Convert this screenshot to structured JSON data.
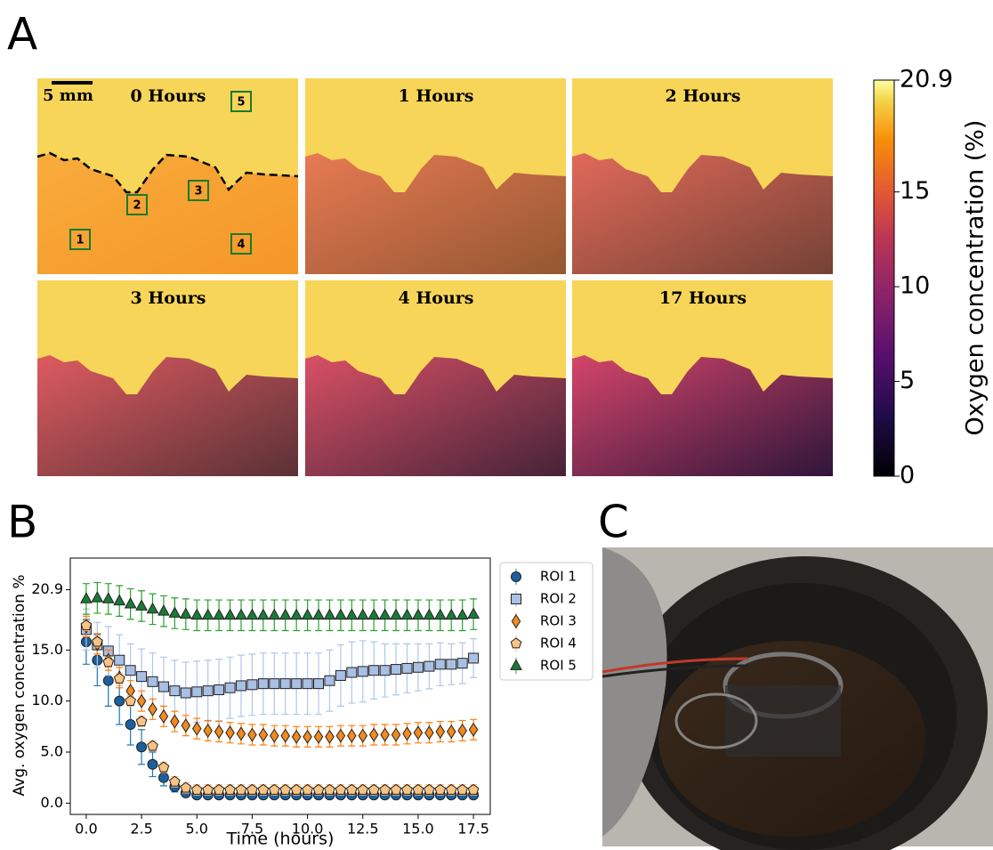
{
  "panel_labels": [
    "A",
    "B",
    "C"
  ],
  "heatmaps": {
    "titles": [
      "0 Hours",
      "1 Hours",
      "2 Hours",
      "3 Hours",
      "4 Hours",
      "17 Hours"
    ],
    "scale_bar": "5 mm",
    "roi_labels": [
      "1",
      "2",
      "3",
      "4",
      "5"
    ]
  },
  "colorbar": {
    "label": "Oxygen concentration (%)",
    "lim": [
      0,
      20.9
    ],
    "ticks": [
      0,
      5,
      10,
      15,
      20.9
    ]
  },
  "chart_data": {
    "type": "errorbar",
    "x_label": "Time (hours)",
    "y_label": "Avg. oxygen concentration %",
    "x": [
      0,
      0.5,
      1,
      1.5,
      2,
      2.5,
      3,
      3.5,
      4,
      4.5,
      5,
      5.5,
      6,
      6.5,
      7,
      7.5,
      8,
      8.5,
      9,
      9.5,
      10,
      10.5,
      11,
      11.5,
      12,
      12.5,
      13,
      13.5,
      14,
      14.5,
      15,
      15.5,
      16,
      16.5,
      17,
      17.5
    ],
    "xlim": [
      -0.72,
      18.26
    ],
    "ylim": [
      -1.1,
      24.0
    ],
    "xticks": [
      {
        "value": 0,
        "label": "0.0"
      },
      {
        "value": 2.5,
        "label": "2.5"
      },
      {
        "value": 5,
        "label": "5.0"
      },
      {
        "value": 7.5,
        "label": "7.5"
      },
      {
        "value": 10,
        "label": "10.0"
      },
      {
        "value": 12.5,
        "label": "12.5"
      },
      {
        "value": 15,
        "label": "15.0"
      },
      {
        "value": 17.5,
        "label": "17.5"
      }
    ],
    "yticks": [
      {
        "value": 0,
        "label": "0.0"
      },
      {
        "value": 5,
        "label": "5.0"
      },
      {
        "value": 10,
        "label": "10.0"
      },
      {
        "value": 15,
        "label": "15.0"
      },
      20.9
    ],
    "legend": "outside-right",
    "series": [
      {
        "name": "ROI 1",
        "marker": "circle",
        "color": "#1c5f9e",
        "error_color": "#1f77b4",
        "values": [
          15.8,
          14.0,
          12.0,
          10.0,
          7.7,
          5.5,
          3.8,
          2.5,
          1.6,
          1.0,
          0.8,
          0.8,
          0.8,
          0.8,
          0.8,
          0.8,
          0.8,
          0.8,
          0.8,
          0.8,
          0.8,
          0.8,
          0.8,
          0.8,
          0.8,
          0.8,
          0.8,
          0.8,
          0.8,
          0.8,
          0.8,
          0.8,
          0.8,
          0.8,
          0.8,
          0.8
        ],
        "errors": [
          2.2,
          2.5,
          2.5,
          2.3,
          2.0,
          1.7,
          1.2,
          0.8,
          0.5,
          0.3,
          0.3,
          0.3,
          0.3,
          0.3,
          0.3,
          0.3,
          0.3,
          0.3,
          0.3,
          0.3,
          0.3,
          0.3,
          0.3,
          0.3,
          0.3,
          0.3,
          0.3,
          0.3,
          0.3,
          0.3,
          0.3,
          0.3,
          0.3,
          0.3,
          0.3,
          0.3
        ]
      },
      {
        "name": "ROI 2",
        "marker": "square",
        "color": "#a9bfe4",
        "error_color": "#aec7e8",
        "values": [
          17.0,
          15.5,
          14.9,
          14.0,
          13.0,
          12.4,
          11.9,
          11.4,
          11.0,
          10.8,
          10.9,
          11.0,
          11.1,
          11.3,
          11.5,
          11.6,
          11.7,
          11.7,
          11.7,
          11.7,
          11.7,
          11.7,
          12.0,
          12.5,
          12.8,
          12.9,
          13.0,
          13.0,
          13.1,
          13.2,
          13.3,
          13.4,
          13.6,
          13.6,
          13.7,
          14.2
        ],
        "errors": [
          2.0,
          2.2,
          2.4,
          2.5,
          2.6,
          2.7,
          2.8,
          2.9,
          3.0,
          3.0,
          3.0,
          3.0,
          3.0,
          3.0,
          3.0,
          3.0,
          3.0,
          3.0,
          3.0,
          3.0,
          3.0,
          3.0,
          3.0,
          3.0,
          3.0,
          3.0,
          2.8,
          2.6,
          2.5,
          2.4,
          2.3,
          2.2,
          2.1,
          2.0,
          2.0,
          1.9
        ]
      },
      {
        "name": "ROI 3",
        "marker": "diamond",
        "color": "#f28a1e",
        "error_color": "#ff7f0e",
        "values": [
          17.3,
          15.6,
          14.0,
          12.3,
          11.0,
          10.0,
          9.2,
          8.5,
          8.0,
          7.6,
          7.3,
          7.1,
          7.0,
          6.9,
          6.8,
          6.7,
          6.7,
          6.6,
          6.6,
          6.5,
          6.5,
          6.5,
          6.5,
          6.6,
          6.6,
          6.6,
          6.7,
          6.7,
          6.7,
          6.8,
          6.9,
          6.9,
          7.0,
          7.0,
          7.1,
          7.2
        ],
        "errors": [
          1.0,
          1.0,
          1.0,
          1.0,
          1.0,
          1.0,
          1.0,
          1.0,
          1.0,
          1.0,
          1.0,
          1.0,
          1.0,
          1.0,
          1.0,
          1.0,
          1.0,
          1.0,
          1.0,
          1.0,
          1.0,
          1.0,
          1.0,
          1.0,
          1.0,
          1.0,
          1.0,
          1.0,
          1.0,
          1.0,
          1.0,
          1.0,
          1.0,
          1.0,
          1.0,
          1.0
        ]
      },
      {
        "name": "ROI 4",
        "marker": "pentagon",
        "color": "#f8c383",
        "error_color": "#ffbb78",
        "values": [
          17.4,
          15.8,
          13.8,
          12.2,
          10.0,
          8.0,
          5.6,
          3.5,
          2.1,
          1.5,
          1.3,
          1.3,
          1.3,
          1.3,
          1.3,
          1.3,
          1.3,
          1.3,
          1.3,
          1.3,
          1.3,
          1.3,
          1.3,
          1.3,
          1.3,
          1.3,
          1.3,
          1.3,
          1.3,
          1.3,
          1.3,
          1.3,
          1.3,
          1.3,
          1.3,
          1.3
        ],
        "errors": [
          0.5,
          0.5,
          0.5,
          0.5,
          0.5,
          0.5,
          0.5,
          0.5,
          0.5,
          0.5,
          0.5,
          0.5,
          0.5,
          0.5,
          0.5,
          0.5,
          0.5,
          0.5,
          0.5,
          0.5,
          0.5,
          0.5,
          0.5,
          0.5,
          0.5,
          0.5,
          0.5,
          0.5,
          0.5,
          0.5,
          0.5,
          0.5,
          0.5,
          0.5,
          0.5,
          0.5
        ]
      },
      {
        "name": "ROI 5",
        "marker": "triangle",
        "color": "#1b7a3a",
        "error_color": "#2ca02c",
        "values": [
          20.0,
          20.1,
          20.0,
          19.8,
          19.5,
          19.3,
          19.0,
          18.8,
          18.6,
          18.5,
          18.4,
          18.4,
          18.4,
          18.4,
          18.4,
          18.4,
          18.4,
          18.4,
          18.4,
          18.4,
          18.4,
          18.4,
          18.4,
          18.4,
          18.4,
          18.4,
          18.4,
          18.4,
          18.4,
          18.4,
          18.4,
          18.4,
          18.4,
          18.4,
          18.4,
          18.5
        ],
        "errors": [
          1.5,
          1.5,
          1.5,
          1.5,
          1.5,
          1.5,
          1.5,
          1.5,
          1.5,
          1.5,
          1.5,
          1.5,
          1.5,
          1.5,
          1.5,
          1.5,
          1.5,
          1.5,
          1.5,
          1.5,
          1.5,
          1.5,
          1.5,
          1.5,
          1.5,
          1.5,
          1.5,
          1.5,
          1.5,
          1.5,
          1.5,
          1.5,
          1.5,
          1.5,
          1.5,
          1.5
        ]
      }
    ]
  }
}
